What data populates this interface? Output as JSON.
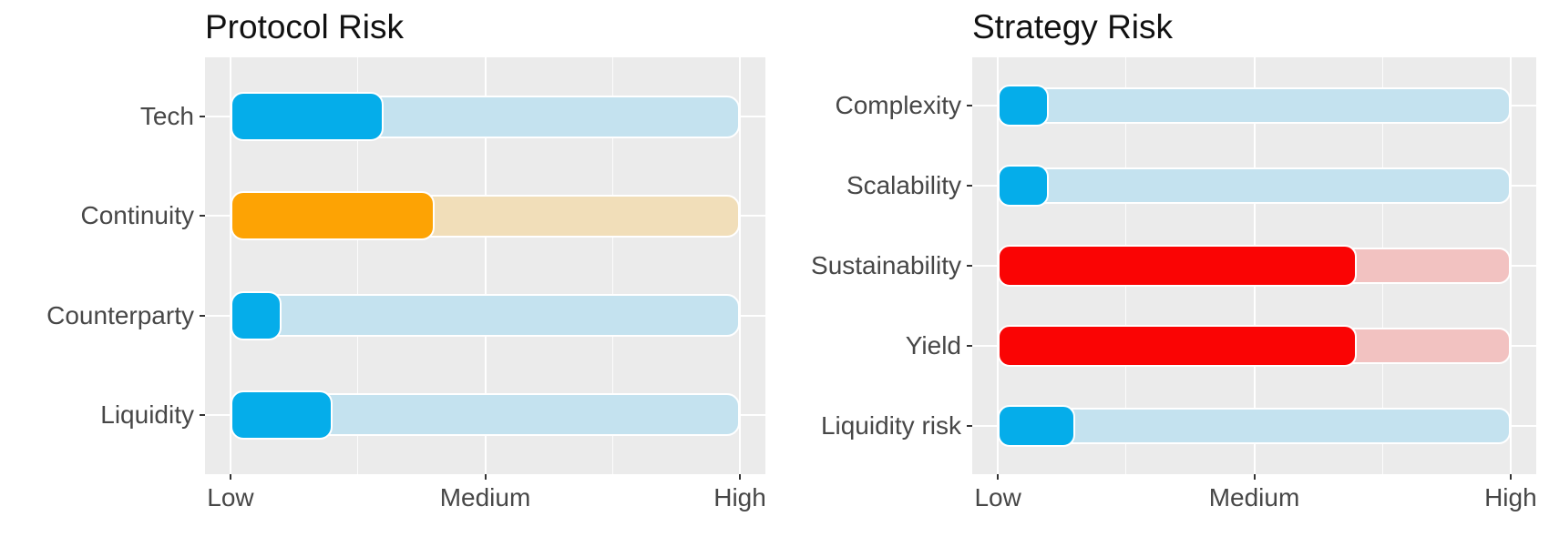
{
  "page": {
    "background": "#FFFFFF"
  },
  "palette": {
    "blue": "#05ADEA",
    "orange": "#FDA304",
    "red": "#FA0404",
    "blue_track": "#C4E2EF",
    "orange_track": "#F1DEB9",
    "red_track": "#F2C2C1",
    "panel_background": "#EBEBEB",
    "gridline": "#FFFFFF",
    "axis_text": "#474747",
    "title_text": "#111111"
  },
  "chart_data": [
    {
      "type": "bar",
      "orientation": "horizontal",
      "title": "Protocol Risk",
      "categories": [
        "Tech",
        "Continuity",
        "Counterparty",
        "Liquidity"
      ],
      "values": [
        1.6,
        1.8,
        1.2,
        1.4
      ],
      "bar_colors": [
        "#05ADEA",
        "#FDA304",
        "#05ADEA",
        "#05ADEA"
      ],
      "track_colors": [
        "#C4E2EF",
        "#F1DEB9",
        "#C4E2EF",
        "#C4E2EF"
      ],
      "track_start": 1,
      "track_end": 3,
      "xlim": [
        0.9,
        3.1
      ],
      "x_ticks": [
        1,
        2,
        3
      ],
      "x_tick_labels": [
        "Low",
        "Medium",
        "High"
      ],
      "x_minor_ticks": [
        1.5,
        2.5
      ],
      "grid": "white major and minor gridlines on gray panel",
      "legend": "none"
    },
    {
      "type": "bar",
      "orientation": "horizontal",
      "title": "Strategy Risk",
      "categories": [
        "Complexity",
        "Scalability",
        "Sustainability",
        "Yield",
        "Liquidity risk"
      ],
      "values": [
        1.2,
        1.2,
        2.4,
        2.4,
        1.3
      ],
      "bar_colors": [
        "#05ADEA",
        "#05ADEA",
        "#FA0404",
        "#FA0404",
        "#05ADEA"
      ],
      "track_colors": [
        "#C4E2EF",
        "#C4E2EF",
        "#F2C2C1",
        "#F2C2C1",
        "#C4E2EF"
      ],
      "track_start": 1,
      "track_end": 3,
      "xlim": [
        0.9,
        3.1
      ],
      "x_ticks": [
        1,
        2,
        3
      ],
      "x_tick_labels": [
        "Low",
        "Medium",
        "High"
      ],
      "x_minor_ticks": [
        1.5,
        2.5
      ],
      "grid": "white major and minor gridlines on gray panel",
      "legend": "none"
    }
  ]
}
